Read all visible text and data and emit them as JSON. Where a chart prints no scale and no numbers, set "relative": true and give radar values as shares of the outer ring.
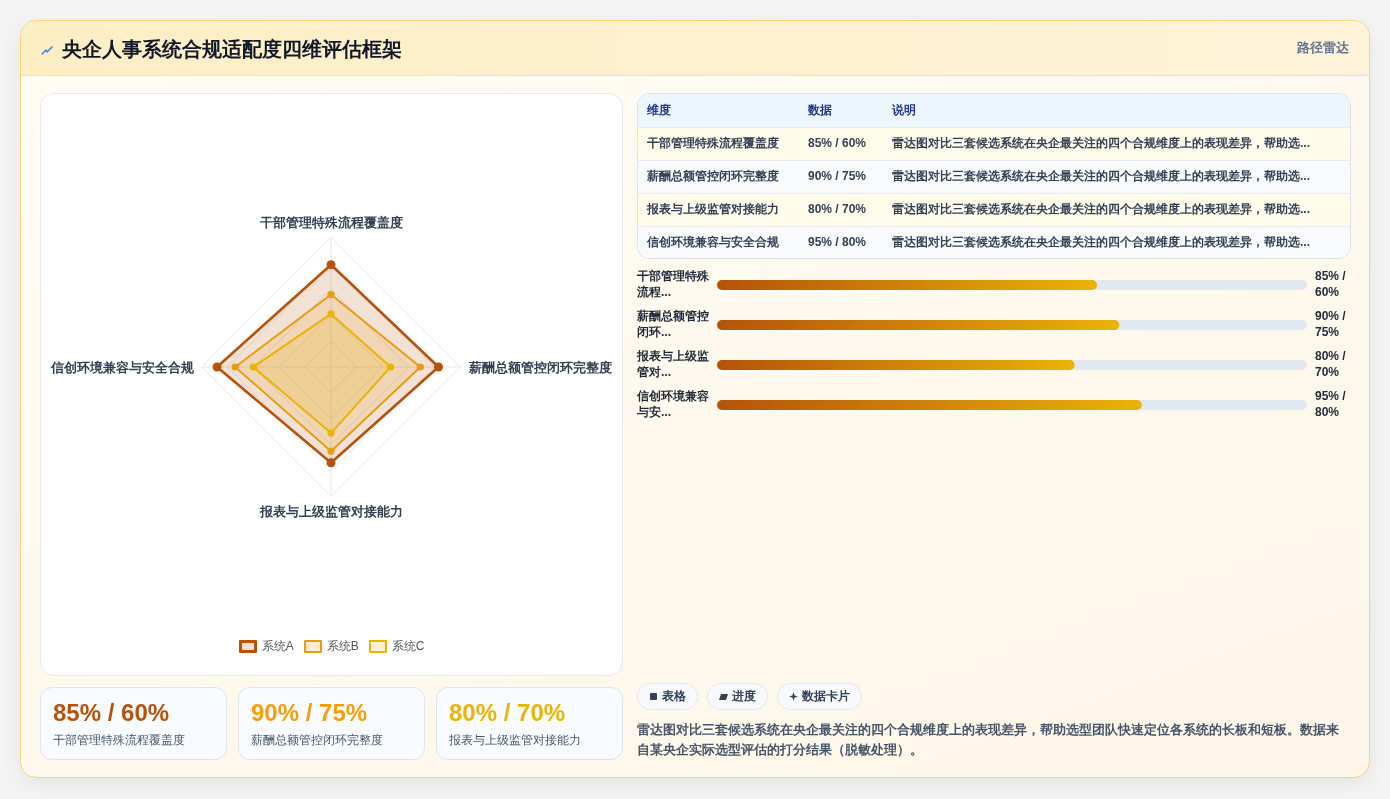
{
  "chart_data": [
    {
      "type": "other",
      "title": "央企人事系统合规适配度四维评估框架",
      "subtitle": "路径雷达"
    },
    {
      "type": "radar",
      "categories": [
        "干部管理特殊流程覆盖度",
        "薪酬总额管控闭环完整度",
        "报表与上级监管对接能力",
        "信创环境兼容与安全合规"
      ],
      "relative": true,
      "grid": true,
      "legend": "bottom",
      "marker": "circle",
      "series": [
        {
          "name": "系统A",
          "color": "#b45309",
          "values": [
            0.79,
            0.83,
            0.74,
            0.88
          ]
        },
        {
          "name": "系统B",
          "color": "#e59d12",
          "values": [
            0.56,
            0.69,
            0.65,
            0.74
          ]
        },
        {
          "name": "系统C",
          "color": "#eab308",
          "values": [
            0.41,
            0.46,
            0.51,
            0.6
          ]
        }
      ]
    },
    {
      "type": "other",
      "categories": [
        "干部管理特殊流程覆盖度",
        "薪酬总额管控闭环完整度",
        "报表与上级监管对接能力",
        "信创环境兼容与安全合规"
      ],
      "value_labels": [
        "85% / 60%",
        "90% / 75%",
        "80% / 70%",
        "95% / 80%"
      ],
      "annotations": [
        "维度",
        "数据",
        "说明",
        "雷达图对比三套候选系统在央企最关注的四个合规维度上的表现差异，帮助选...",
        "雷达图对比三套候选系统在央企最关注的四个合规维度上的表现差异，帮助选...",
        "雷达图对比三套候选系统在央企最关注的四个合规维度上的表现差异，帮助选...",
        "雷达图对比三套候选系统在央企最关注的四个合规维度上的表现差异，帮助选..."
      ]
    },
    {
      "type": "bar",
      "orientation": "horizontal",
      "categories": [
        "干部管理特殊流程...",
        "薪酬总额管控闭环...",
        "报表与上级监管对...",
        "信创环境兼容与安..."
      ],
      "values": [
        85,
        90,
        80,
        95
      ],
      "value_labels": [
        "85% / 60%",
        "90% / 75%",
        "80% / 70%",
        "95% / 80%"
      ],
      "color": "#b45309"
    },
    {
      "type": "other",
      "categories": [
        "干部管理特殊流程覆盖度",
        "薪酬总额管控闭环完整度",
        "报表与上级监管对接能力"
      ],
      "value_labels": [
        "85% / 60%",
        "90% / 75%",
        "80% / 70%"
      ]
    },
    {
      "type": "other",
      "categories": [
        "表格",
        "进度",
        "数据卡片"
      ],
      "annotations": [
        "雷达图对比三套候选系统在央企最关注的四个合规维度上的表现差异，帮助选型团队快速定位各系统的长板和短板。数据来自某央企实际选型评估的打分结果（脱敏处理）。"
      ]
    }
  ]
}
